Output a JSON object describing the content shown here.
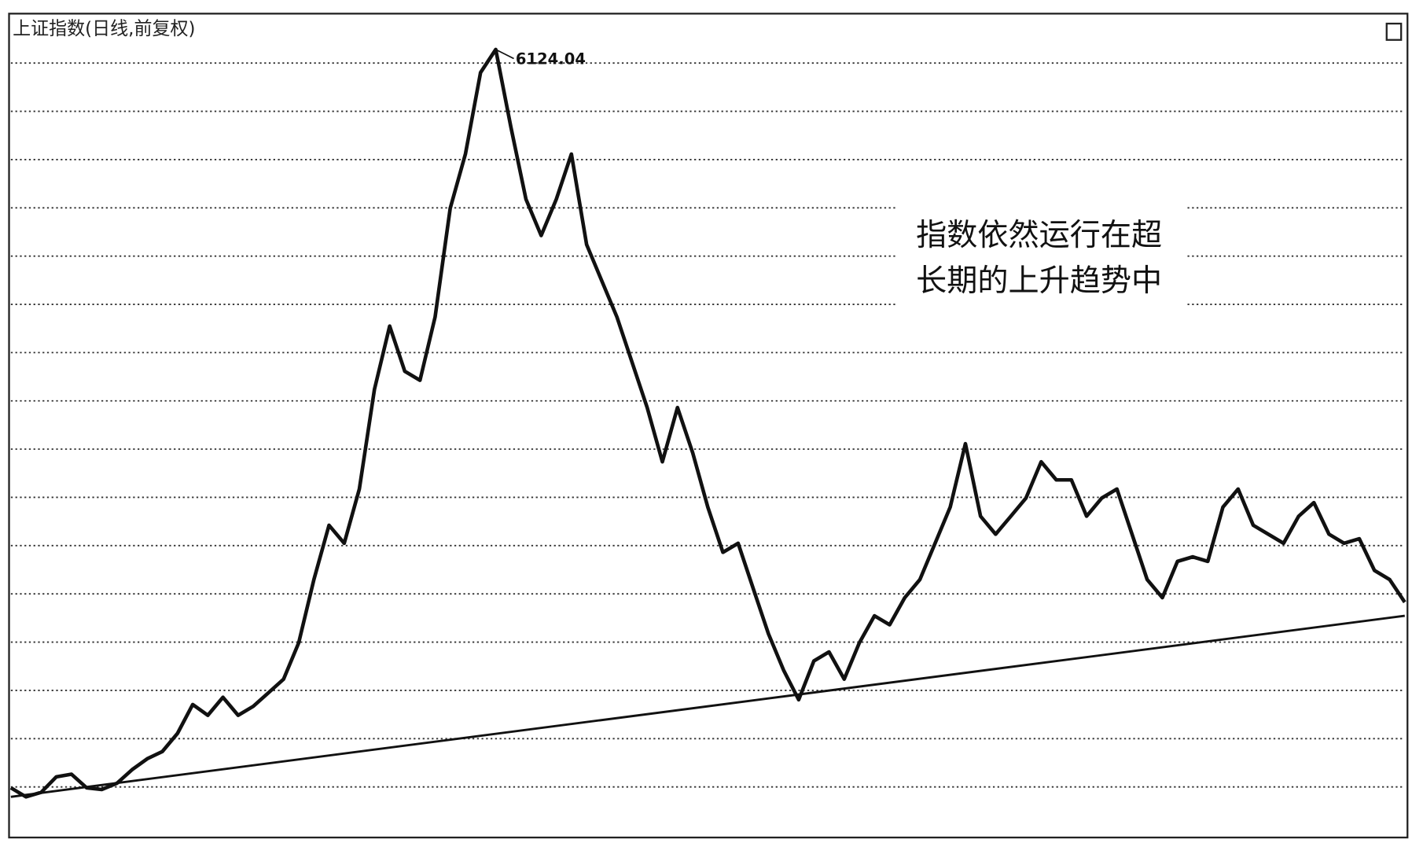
{
  "chart_data": {
    "type": "line",
    "title": "上证指数(日线,前复权)",
    "peak_label": "6124.04",
    "annotation": [
      "指数依然运行在超",
      "长期的上升趋势中"
    ],
    "ylim": [
      750,
      6370
    ],
    "yticks": [
      1066,
      1397,
      1728,
      2059,
      2390,
      2721,
      3052,
      3383,
      3714,
      4045,
      4376,
      4707,
      5038,
      5369,
      5700,
      6031
    ],
    "grid": true,
    "series": [
      {
        "color": "#111111",
        "values": [
          1060,
          998,
          1029,
          1135,
          1153,
          1060,
          1048,
          1091,
          1184,
          1259,
          1309,
          1433,
          1631,
          1557,
          1681,
          1557,
          1619,
          1712,
          1805,
          2054,
          2488,
          2861,
          2737,
          3109,
          3793,
          4227,
          3917,
          3855,
          4289,
          5035,
          5407,
          5966,
          6124,
          5593,
          5097,
          4848,
          5097,
          5407,
          4786,
          4538,
          4289,
          3979,
          3668,
          3296,
          3668,
          3358,
          2985,
          2675,
          2737,
          2426,
          2116,
          1867,
          1664,
          1930,
          1992,
          1805,
          2054,
          2240,
          2178,
          2364,
          2488,
          2737,
          2985,
          3420,
          2923,
          2799,
          2923,
          3047,
          3296,
          3172,
          3172,
          2923,
          3047,
          3109,
          2799,
          2488,
          2364,
          2613,
          2644,
          2613,
          2985,
          3109,
          2861,
          2799,
          2737,
          2923,
          3016,
          2799,
          2737,
          2768,
          2551,
          2488,
          2333
        ]
      }
    ],
    "trendline": {
      "color": "#111111",
      "values": [
        998,
        2240
      ]
    }
  }
}
